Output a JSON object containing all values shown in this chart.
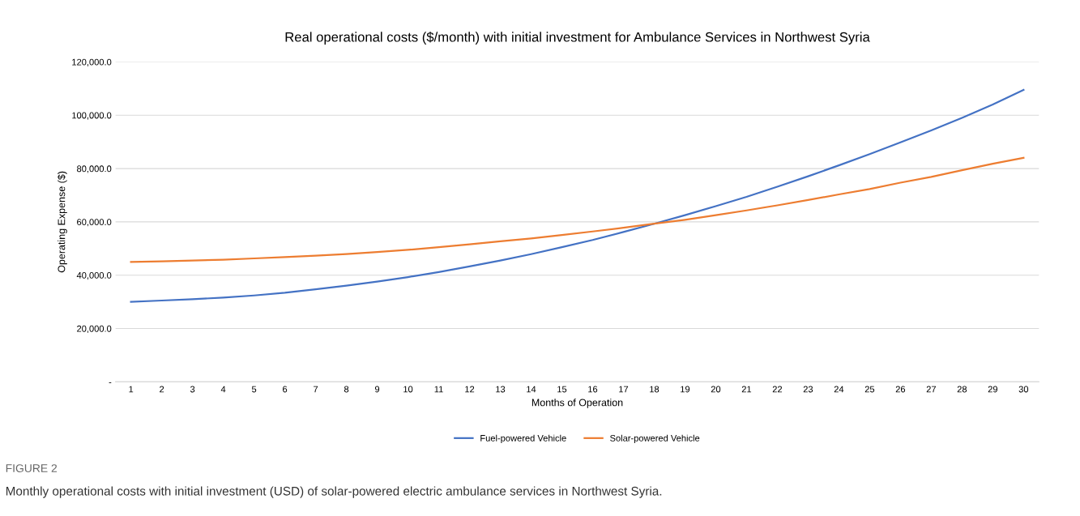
{
  "chart_data": {
    "type": "line",
    "title": "Real operational costs ($/month) with initial investment for Ambulance Services in Northwest Syria",
    "xlabel": "Months of Operation",
    "ylabel": "Operating Expense ($)",
    "categories": [
      "1",
      "2",
      "3",
      "4",
      "5",
      "6",
      "7",
      "8",
      "9",
      "10",
      "11",
      "12",
      "13",
      "14",
      "15",
      "16",
      "17",
      "18",
      "19",
      "20",
      "21",
      "22",
      "23",
      "24",
      "25",
      "26",
      "27",
      "28",
      "29",
      "30"
    ],
    "series": [
      {
        "name": "Fuel-powered Vehicle",
        "color": "#4472c4",
        "values": [
          30000,
          30500,
          31000,
          31600,
          32400,
          33400,
          34700,
          36100,
          37600,
          39300,
          41200,
          43300,
          45500,
          47900,
          50500,
          53200,
          56200,
          59300,
          62500,
          65900,
          69400,
          73200,
          77100,
          81200,
          85400,
          89800,
          94300,
          99000,
          104000,
          109500
        ]
      },
      {
        "name": "Solar-powered Vehicle",
        "color": "#ed7d31",
        "values": [
          45000,
          45200,
          45500,
          45800,
          46300,
          46800,
          47300,
          47900,
          48700,
          49500,
          50500,
          51600,
          52700,
          53800,
          55100,
          56400,
          57800,
          59300,
          60800,
          62500,
          64300,
          66200,
          68200,
          70300,
          72300,
          74700,
          76900,
          79400,
          81800,
          84000
        ]
      }
    ],
    "ylim": [
      0,
      120000
    ],
    "yticks": [
      {
        "value": 0,
        "label": "-"
      },
      {
        "value": 20000,
        "label": "20,000.0"
      },
      {
        "value": 40000,
        "label": "40,000.0"
      },
      {
        "value": 60000,
        "label": "60,000.0"
      },
      {
        "value": 80000,
        "label": "80,000.0"
      },
      {
        "value": 100000,
        "label": "100,000.0"
      },
      {
        "value": 120000,
        "label": "120,000.0"
      }
    ],
    "grid": "y",
    "legend": "bottom",
    "marker": "none",
    "line_style": "solid",
    "annotations": [
      "FIGURE 2",
      "Monthly operational costs with initial investment (USD) of solar-powered electric ambulance services in Northwest Syria."
    ]
  }
}
